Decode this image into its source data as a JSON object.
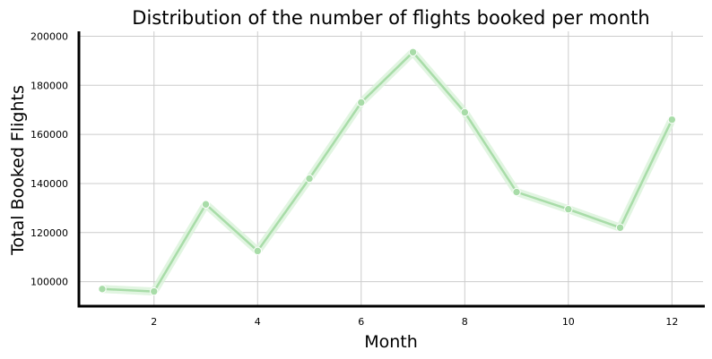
{
  "chart_data": {
    "type": "line",
    "title": "Distribution of the number of flights booked per month",
    "xlabel": "Month",
    "ylabel": "Total Booked Flights",
    "x": [
      1,
      2,
      3,
      4,
      5,
      6,
      7,
      8,
      9,
      10,
      11,
      12
    ],
    "series": [
      {
        "values": [
          97000,
          96000,
          131500,
          112500,
          142000,
          173000,
          193500,
          169000,
          136500,
          129500,
          122000,
          166000
        ],
        "color": "#a8dca8"
      }
    ],
    "xlim": [
      0.55,
      12.6
    ],
    "ylim": [
      90000,
      202000
    ],
    "xticks": [
      2,
      4,
      6,
      8,
      10,
      12
    ],
    "yticks": [
      100000,
      120000,
      140000,
      160000,
      180000,
      200000
    ],
    "grid": true,
    "legend": "none",
    "colors": {
      "line": "#a8dca8",
      "band": "#d9f2d9",
      "grid": "#cccccc",
      "axis": "#000000"
    }
  }
}
